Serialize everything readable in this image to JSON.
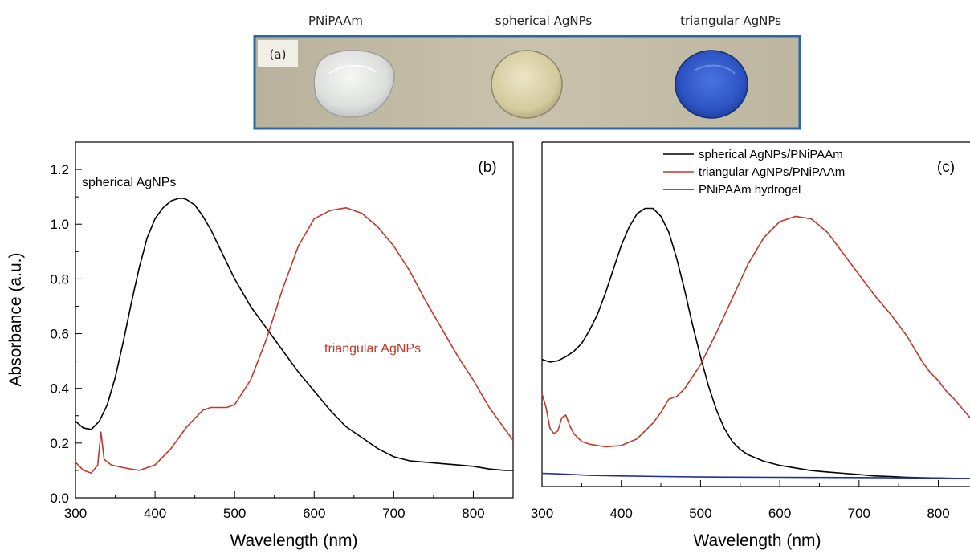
{
  "photo": {
    "captions": [
      "PNiPAAm",
      "spherical AgNPs",
      "triangular AgNPs"
    ],
    "panel_label": "(a)",
    "sample_colors": [
      "#e6e8e4",
      "#d9d1a8",
      "#2f57c8"
    ],
    "border_color": "#2a6aa0"
  },
  "chart_data": [
    {
      "type": "line",
      "panel_label": "(b)",
      "xlabel": "Wavelength (nm)",
      "ylabel": "Absorbance (a.u.)",
      "xlim": [
        300,
        850
      ],
      "ylim": [
        0,
        1.3
      ],
      "xticks": [
        "300",
        "400",
        "500",
        "600",
        "700",
        "800"
      ],
      "yticks": [
        "0.0",
        "0.2",
        "0.4",
        "0.6",
        "0.8",
        "1.0",
        "1.2"
      ],
      "annotations": [
        {
          "text": "spherical AgNPs",
          "color": "#000000"
        },
        {
          "text": "triangular AgNPs",
          "color": "#c0392b"
        }
      ],
      "series": [
        {
          "color": "#000000",
          "x": [
            300,
            310,
            320,
            330,
            340,
            350,
            360,
            370,
            380,
            390,
            400,
            410,
            420,
            430,
            435,
            440,
            450,
            460,
            470,
            480,
            490,
            500,
            510,
            520,
            530,
            540,
            550,
            560,
            580,
            600,
            620,
            640,
            660,
            680,
            700,
            720,
            740,
            760,
            780,
            800,
            820,
            840,
            850
          ],
          "y": [
            0.28,
            0.255,
            0.25,
            0.28,
            0.34,
            0.44,
            0.57,
            0.71,
            0.84,
            0.95,
            1.02,
            1.06,
            1.085,
            1.095,
            1.095,
            1.09,
            1.07,
            1.03,
            0.98,
            0.92,
            0.86,
            0.8,
            0.75,
            0.7,
            0.66,
            0.62,
            0.58,
            0.54,
            0.46,
            0.39,
            0.32,
            0.26,
            0.22,
            0.18,
            0.15,
            0.135,
            0.13,
            0.125,
            0.12,
            0.115,
            0.105,
            0.1,
            0.1
          ]
        },
        {
          "color": "#c0392b",
          "x": [
            300,
            310,
            320,
            328,
            332,
            336,
            345,
            360,
            380,
            400,
            420,
            440,
            460,
            470,
            480,
            490,
            500,
            520,
            540,
            560,
            580,
            600,
            620,
            640,
            660,
            680,
            700,
            720,
            740,
            760,
            780,
            800,
            820,
            840,
            850
          ],
          "y": [
            0.13,
            0.1,
            0.09,
            0.12,
            0.24,
            0.14,
            0.12,
            0.11,
            0.1,
            0.12,
            0.18,
            0.26,
            0.32,
            0.33,
            0.33,
            0.33,
            0.34,
            0.43,
            0.58,
            0.76,
            0.92,
            1.02,
            1.05,
            1.06,
            1.04,
            0.99,
            0.92,
            0.83,
            0.72,
            0.62,
            0.52,
            0.43,
            0.33,
            0.25,
            0.21
          ]
        }
      ]
    },
    {
      "type": "line",
      "panel_label": "(c)",
      "xlabel": "Wavelength (nm)",
      "xlim": [
        300,
        840
      ],
      "ylim": [
        0,
        1.3
      ],
      "xticks": [
        "300",
        "400",
        "500",
        "600",
        "700",
        "800"
      ],
      "legend": "top-right",
      "series": [
        {
          "name": "spherical AgNPs/PNiPAAm",
          "color": "#000000",
          "x": [
            300,
            310,
            320,
            330,
            340,
            350,
            360,
            370,
            380,
            390,
            400,
            410,
            420,
            430,
            440,
            450,
            460,
            470,
            480,
            490,
            500,
            510,
            520,
            530,
            540,
            550,
            560,
            580,
            600,
            620,
            640,
            660,
            680,
            700,
            720,
            740,
            760,
            780,
            800,
            820,
            840
          ],
          "y": [
            0.48,
            0.47,
            0.475,
            0.49,
            0.51,
            0.54,
            0.59,
            0.65,
            0.73,
            0.82,
            0.91,
            0.98,
            1.03,
            1.05,
            1.05,
            1.02,
            0.96,
            0.86,
            0.74,
            0.61,
            0.49,
            0.38,
            0.29,
            0.22,
            0.17,
            0.14,
            0.12,
            0.095,
            0.08,
            0.07,
            0.06,
            0.055,
            0.05,
            0.045,
            0.04,
            0.038,
            0.035,
            0.033,
            0.032,
            0.03,
            0.03
          ]
        },
        {
          "name": "triangular AgNPs/PNiPAAm",
          "color": "#c0392b",
          "x": [
            300,
            305,
            310,
            315,
            320,
            325,
            330,
            335,
            340,
            350,
            360,
            380,
            400,
            420,
            440,
            450,
            460,
            470,
            480,
            500,
            520,
            540,
            560,
            580,
            600,
            620,
            640,
            660,
            680,
            700,
            720,
            740,
            760,
            780,
            790,
            800,
            810,
            820,
            840
          ],
          "y": [
            0.35,
            0.3,
            0.22,
            0.2,
            0.21,
            0.26,
            0.27,
            0.23,
            0.2,
            0.17,
            0.16,
            0.15,
            0.155,
            0.18,
            0.24,
            0.28,
            0.33,
            0.34,
            0.37,
            0.46,
            0.58,
            0.71,
            0.84,
            0.94,
            1.0,
            1.02,
            1.01,
            0.96,
            0.88,
            0.8,
            0.72,
            0.65,
            0.57,
            0.47,
            0.43,
            0.4,
            0.36,
            0.33,
            0.26
          ]
        },
        {
          "name": "PNiPAAm hydrogel",
          "color": "#1f2f9e",
          "x": [
            300,
            320,
            340,
            360,
            400,
            450,
            500,
            600,
            700,
            800,
            840
          ],
          "y": [
            0.05,
            0.048,
            0.045,
            0.042,
            0.04,
            0.038,
            0.036,
            0.035,
            0.034,
            0.032,
            0.03
          ]
        }
      ]
    }
  ]
}
